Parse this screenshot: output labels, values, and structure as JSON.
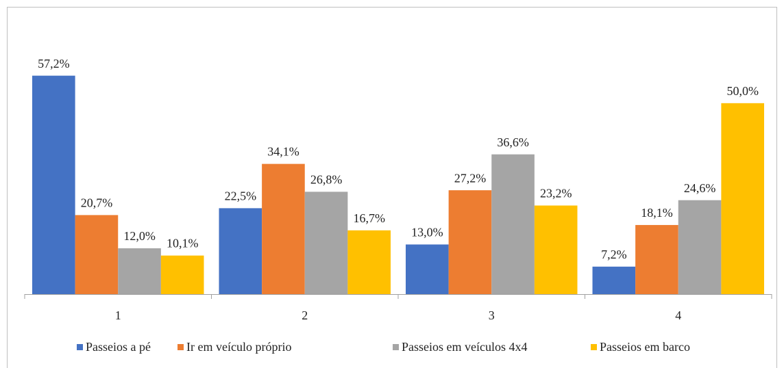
{
  "chart_data": {
    "type": "bar",
    "categories": [
      "1",
      "2",
      "3",
      "4"
    ],
    "series": [
      {
        "name": "Passeios a pé",
        "color": "#4472c4",
        "values": [
          57.2,
          22.5,
          13.0,
          7.2
        ],
        "value_labels": [
          "57,2%",
          "22,5%",
          "13,0%",
          "7,2%"
        ]
      },
      {
        "name": "Ir em veículo próprio",
        "color": "#ed7d31",
        "values": [
          20.7,
          34.1,
          27.2,
          18.1
        ],
        "value_labels": [
          "20,7%",
          "34,1%",
          "27,2%",
          "18,1%"
        ]
      },
      {
        "name": "Passeios em veículos 4x4",
        "color": "#a5a5a5",
        "values": [
          12.0,
          26.8,
          36.6,
          24.6
        ],
        "value_labels": [
          "12,0%",
          "26,8%",
          "36,6%",
          "24,6%"
        ]
      },
      {
        "name": "Passeios em barco",
        "color": "#ffc000",
        "values": [
          10.1,
          16.7,
          23.2,
          50.0
        ],
        "value_labels": [
          "10,1%",
          "16,7%",
          "23,2%",
          "50,0%"
        ]
      }
    ],
    "ylim": [
      0,
      60
    ],
    "legend": "bottom"
  }
}
